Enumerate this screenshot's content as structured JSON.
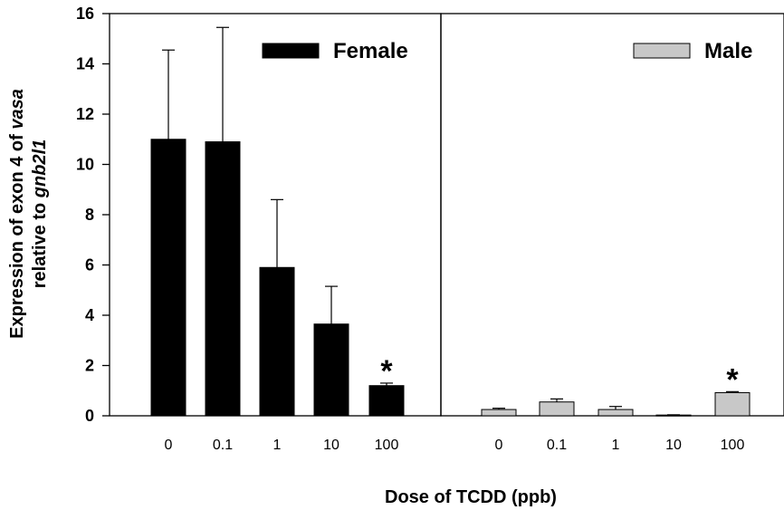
{
  "chart_data": {
    "type": "bar",
    "ylabel_line1_prefix": "Expression of exon 4 of ",
    "ylabel_line1_italic": "vasa",
    "ylabel_line2_prefix": "relative to ",
    "ylabel_line2_italic": "gnb2l1",
    "xlabel": "Dose of TCDD (ppb)",
    "ylim": [
      0,
      16
    ],
    "yticks": [
      0,
      2,
      4,
      6,
      8,
      10,
      12,
      14,
      16
    ],
    "categories": [
      "0",
      "0.1",
      "1",
      "10",
      "100"
    ],
    "series": [
      {
        "name": "Female",
        "color": "#000000",
        "values": [
          11.0,
          10.9,
          5.9,
          3.65,
          1.2
        ],
        "errors": [
          3.55,
          4.55,
          2.7,
          1.5,
          0.1
        ],
        "significant": [
          false,
          false,
          false,
          false,
          true
        ]
      },
      {
        "name": "Male",
        "color": "#c8c8c8",
        "values": [
          0.25,
          0.55,
          0.25,
          0.03,
          0.92
        ],
        "errors": [
          0.05,
          0.12,
          0.12,
          0.01,
          0.04
        ],
        "significant": [
          false,
          false,
          false,
          false,
          true
        ]
      }
    ],
    "significance_marker": "*",
    "legend_placement": [
      "top-center of left panel",
      "top-right of right panel"
    ],
    "grid": false
  }
}
